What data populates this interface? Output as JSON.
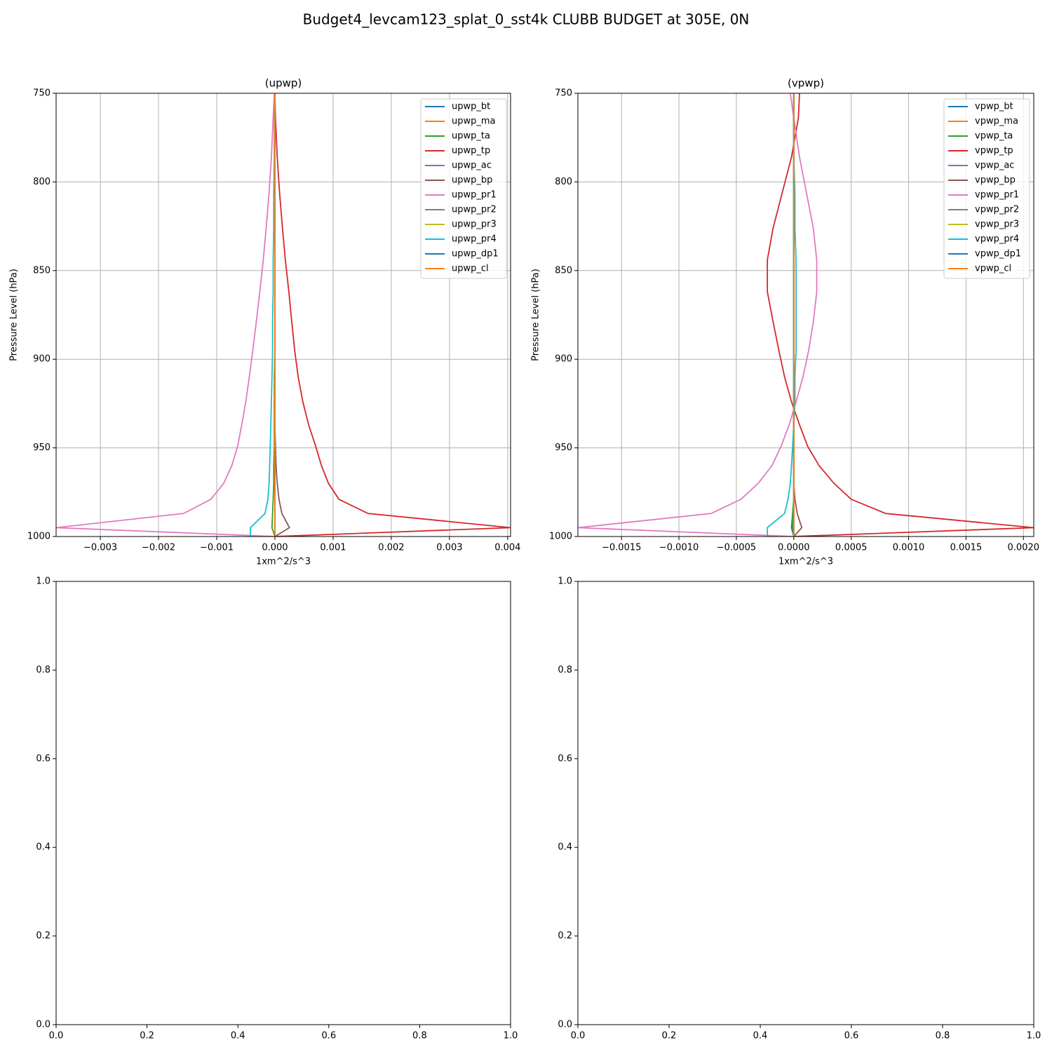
{
  "title": "Budget4_levcam123_splat_0_sst4k CLUBB BUDGET at 305E, 0N",
  "chart_data": [
    {
      "type": "line",
      "title": "(upwp)",
      "xlabel": "1xm^2/s^3",
      "ylabel": "Pressure Level (hPa)",
      "grid": true,
      "legend": "upper right",
      "xlim": [
        -0.00376,
        0.00405
      ],
      "ylim": [
        1000,
        750
      ],
      "xticks": [
        {
          "value": -0.003,
          "label": "−0.003"
        },
        {
          "value": -0.002,
          "label": "−0.002"
        },
        {
          "value": -0.001,
          "label": "−0.001"
        },
        {
          "value": 0,
          "label": "0.000"
        },
        {
          "value": 0.001,
          "label": "0.001"
        },
        {
          "value": 0.002,
          "label": "0.002"
        },
        {
          "value": 0.003,
          "label": "0.003"
        },
        {
          "value": 0.004,
          "label": "0.004"
        }
      ],
      "yticks": [
        750,
        800,
        850,
        900,
        950,
        1000
      ],
      "y": [
        1000,
        995,
        987,
        979,
        970,
        960,
        949,
        937,
        924,
        910,
        895,
        879,
        862,
        844,
        826,
        806,
        786,
        764,
        750
      ],
      "series": [
        {
          "name": "upwp_bt",
          "color": "#1f77b4",
          "values": [
            0,
            0,
            0,
            0,
            0,
            0,
            0,
            0,
            0,
            0,
            0,
            0,
            0,
            0,
            0,
            0,
            0,
            0,
            0
          ]
        },
        {
          "name": "upwp_ma",
          "color": "#ff7f0e",
          "values": [
            0,
            0,
            0,
            0,
            0,
            0,
            0,
            0,
            0,
            0,
            0,
            0,
            0,
            0,
            0,
            0,
            0,
            0,
            0
          ]
        },
        {
          "name": "upwp_ta",
          "color": "#2ca02c",
          "values": [
            0,
            -5e-05,
            -4e-05,
            -3e-05,
            -2e-05,
            -2e-05,
            -1e-05,
            -1e-05,
            -1e-05,
            -1e-05,
            0,
            0,
            0,
            0,
            0,
            0,
            0,
            0,
            0
          ]
        },
        {
          "name": "upwp_tp",
          "color": "#d62728",
          "values": [
            0,
            0.00405,
            0.0016,
            0.0011,
            0.00092,
            0.0008,
            0.0007,
            0.00058,
            0.00048,
            0.0004,
            0.00034,
            0.00029,
            0.00024,
            0.00018,
            0.00013,
            8e-05,
            4e-05,
            1e-05,
            0
          ]
        },
        {
          "name": "upwp_ac",
          "color": "#9467bd",
          "values": [
            0,
            0,
            0,
            0,
            0,
            0,
            0,
            0,
            0,
            0,
            0,
            0,
            0,
            0,
            0,
            0,
            0,
            0,
            0
          ]
        },
        {
          "name": "upwp_bp",
          "color": "#8c564b",
          "values": [
            0,
            0.00025,
            0.00012,
            7e-05,
            4e-05,
            2e-05,
            1e-05,
            0,
            0,
            0,
            0,
            0,
            0,
            0,
            0,
            0,
            0,
            0,
            0
          ]
        },
        {
          "name": "upwp_pr1",
          "color": "#e377c2",
          "values": [
            0,
            -0.00376,
            -0.00157,
            -0.0011,
            -0.00088,
            -0.00074,
            -0.00064,
            -0.00057,
            -0.0005,
            -0.00044,
            -0.00038,
            -0.00032,
            -0.00026,
            -0.0002,
            -0.00015,
            -0.0001,
            -6e-05,
            -3e-05,
            -1e-05
          ]
        },
        {
          "name": "upwp_pr2",
          "color": "#7f7f7f",
          "values": [
            0,
            0,
            0,
            0,
            0,
            0,
            0,
            0,
            0,
            0,
            0,
            0,
            0,
            0,
            0,
            0,
            0,
            0,
            0
          ]
        },
        {
          "name": "upwp_pr3",
          "color": "#bcbd22",
          "values": [
            0,
            0,
            0,
            0,
            0,
            0,
            0,
            0,
            0,
            0,
            0,
            0,
            0,
            0,
            0,
            0,
            0,
            0,
            0
          ]
        },
        {
          "name": "upwp_pr4",
          "color": "#17becf",
          "values": [
            -0.00042,
            -0.00042,
            -0.00017,
            -0.00012,
            -0.0001,
            -9e-05,
            -8e-05,
            -7e-05,
            -6e-05,
            -5e-05,
            -4e-05,
            -4e-05,
            -3e-05,
            -3e-05,
            -2e-05,
            -2e-05,
            -1e-05,
            -1e-05,
            0
          ]
        },
        {
          "name": "upwp_dp1",
          "color": "#1f77b4",
          "values": [
            0,
            0,
            0,
            0,
            0,
            0,
            0,
            0,
            0,
            0,
            0,
            0,
            0,
            0,
            0,
            0,
            0,
            0,
            0
          ]
        },
        {
          "name": "upwp_cl",
          "color": "#ff7f0e",
          "values": [
            0,
            0,
            0,
            0,
            0,
            0,
            0,
            0,
            0,
            0,
            0,
            0,
            0,
            0,
            0,
            0,
            0,
            0,
            0
          ]
        }
      ]
    },
    {
      "type": "line",
      "title": "(vpwp)",
      "xlabel": "1xm^2/s^3",
      "ylabel": "Pressure Level (hPa)",
      "grid": true,
      "legend": "upper right",
      "xlim": [
        -0.00188,
        0.00209
      ],
      "ylim": [
        1000,
        750
      ],
      "xticks": [
        {
          "value": -0.0015,
          "label": "−0.0015"
        },
        {
          "value": -0.001,
          "label": "−0.0010"
        },
        {
          "value": -0.0005,
          "label": "−0.0005"
        },
        {
          "value": 0,
          "label": "0.0000"
        },
        {
          "value": 0.0005,
          "label": "0.0005"
        },
        {
          "value": 0.001,
          "label": "0.0010"
        },
        {
          "value": 0.0015,
          "label": "0.0015"
        },
        {
          "value": 0.002,
          "label": "0.0020"
        }
      ],
      "yticks": [
        750,
        800,
        850,
        900,
        950,
        1000
      ],
      "y": [
        1000,
        995,
        987,
        979,
        970,
        960,
        949,
        937,
        924,
        910,
        895,
        879,
        862,
        844,
        826,
        806,
        786,
        764,
        750
      ],
      "series": [
        {
          "name": "vpwp_bt",
          "color": "#1f77b4",
          "values": [
            0,
            -2e-05,
            -1e-05,
            0,
            0,
            0,
            0,
            0,
            0,
            0,
            0,
            0,
            0,
            0,
            0,
            0,
            0,
            0,
            0
          ]
        },
        {
          "name": "vpwp_ma",
          "color": "#ff7f0e",
          "values": [
            0,
            0,
            0,
            0,
            0,
            0,
            0,
            0,
            0,
            0,
            0,
            0,
            0,
            0,
            0,
            0,
            0,
            0,
            0
          ]
        },
        {
          "name": "vpwp_ta",
          "color": "#2ca02c",
          "values": [
            0,
            -1e-05,
            -1e-05,
            0,
            0,
            0,
            0,
            0,
            0,
            0,
            0,
            0,
            0,
            0,
            0,
            0,
            0,
            0,
            0
          ]
        },
        {
          "name": "vpwp_tp",
          "color": "#d62728",
          "values": [
            0,
            0.00209,
            0.0008,
            0.0005,
            0.00035,
            0.00022,
            0.00012,
            5e-05,
            -2e-05,
            -8e-05,
            -0.00013,
            -0.00018,
            -0.00023,
            -0.00023,
            -0.00018,
            -0.0001,
            -2e-05,
            4e-05,
            5e-05
          ]
        },
        {
          "name": "vpwp_ac",
          "color": "#9467bd",
          "values": [
            0,
            0,
            0,
            0,
            0,
            0,
            0,
            0,
            0,
            0,
            0,
            0,
            0,
            0,
            0,
            0,
            0,
            0,
            0
          ]
        },
        {
          "name": "vpwp_bp",
          "color": "#8c564b",
          "values": [
            0,
            7e-05,
            3e-05,
            1e-05,
            0,
            0,
            0,
            0,
            0,
            0,
            0,
            0,
            0,
            0,
            0,
            0,
            0,
            0,
            0
          ]
        },
        {
          "name": "vpwp_pr1",
          "color": "#e377c2",
          "values": [
            0,
            -0.00188,
            -0.00072,
            -0.00046,
            -0.00031,
            -0.00019,
            -0.00011,
            -4e-05,
            2e-05,
            8e-05,
            0.00013,
            0.00017,
            0.0002,
            0.0002,
            0.00017,
            0.00011,
            5e-05,
            0,
            -3e-05
          ]
        },
        {
          "name": "vpwp_pr2",
          "color": "#7f7f7f",
          "values": [
            0,
            0,
            0,
            0,
            0,
            0,
            0,
            0,
            0,
            0,
            0,
            0,
            0,
            0,
            0,
            0,
            0,
            0,
            0
          ]
        },
        {
          "name": "vpwp_pr3",
          "color": "#bcbd22",
          "values": [
            0,
            0,
            0,
            0,
            0,
            0,
            0,
            0,
            0,
            0,
            0,
            0,
            0,
            0,
            0,
            0,
            0,
            0,
            0
          ]
        },
        {
          "name": "vpwp_pr4",
          "color": "#17becf",
          "values": [
            -0.00023,
            -0.00023,
            -8e-05,
            -5e-05,
            -3e-05,
            -2e-05,
            -1e-05,
            0,
            1e-05,
            1e-05,
            2e-05,
            2e-05,
            2e-05,
            2e-05,
            1e-05,
            1e-05,
            0,
            0,
            0
          ]
        },
        {
          "name": "vpwp_dp1",
          "color": "#1f77b4",
          "values": [
            0,
            0,
            0,
            0,
            0,
            0,
            0,
            0,
            0,
            0,
            0,
            0,
            0,
            0,
            0,
            0,
            0,
            0,
            0
          ]
        },
        {
          "name": "vpwp_cl",
          "color": "#ff7f0e",
          "values": [
            0,
            0,
            0,
            0,
            0,
            0,
            0,
            0,
            0,
            0,
            0,
            0,
            0,
            0,
            0,
            0,
            0,
            0,
            0
          ]
        }
      ]
    },
    {
      "type": "line",
      "xlim": [
        0,
        1
      ],
      "ylim": [
        0,
        1
      ],
      "xticks": [
        {
          "value": 0,
          "label": "0.0"
        },
        {
          "value": 0.2,
          "label": "0.2"
        },
        {
          "value": 0.4,
          "label": "0.4"
        },
        {
          "value": 0.6,
          "label": "0.6"
        },
        {
          "value": 0.8,
          "label": "0.8"
        },
        {
          "value": 1,
          "label": "1.0"
        }
      ],
      "yticks": [
        {
          "value": 0,
          "label": "0.0"
        },
        {
          "value": 0.2,
          "label": "0.2"
        },
        {
          "value": 0.4,
          "label": "0.4"
        },
        {
          "value": 0.6,
          "label": "0.6"
        },
        {
          "value": 0.8,
          "label": "0.8"
        },
        {
          "value": 1,
          "label": "1.0"
        }
      ]
    },
    {
      "type": "line",
      "xlim": [
        0,
        1
      ],
      "ylim": [
        0,
        1
      ],
      "xticks": [
        {
          "value": 0,
          "label": "0.0"
        },
        {
          "value": 0.2,
          "label": "0.2"
        },
        {
          "value": 0.4,
          "label": "0.4"
        },
        {
          "value": 0.6,
          "label": "0.6"
        },
        {
          "value": 0.8,
          "label": "0.8"
        },
        {
          "value": 1,
          "label": "1.0"
        }
      ],
      "yticks": [
        {
          "value": 0,
          "label": "0.0"
        },
        {
          "value": 0.2,
          "label": "0.2"
        },
        {
          "value": 0.4,
          "label": "0.4"
        },
        {
          "value": 0.6,
          "label": "0.6"
        },
        {
          "value": 0.8,
          "label": "0.8"
        },
        {
          "value": 1,
          "label": "1.0"
        }
      ]
    }
  ]
}
